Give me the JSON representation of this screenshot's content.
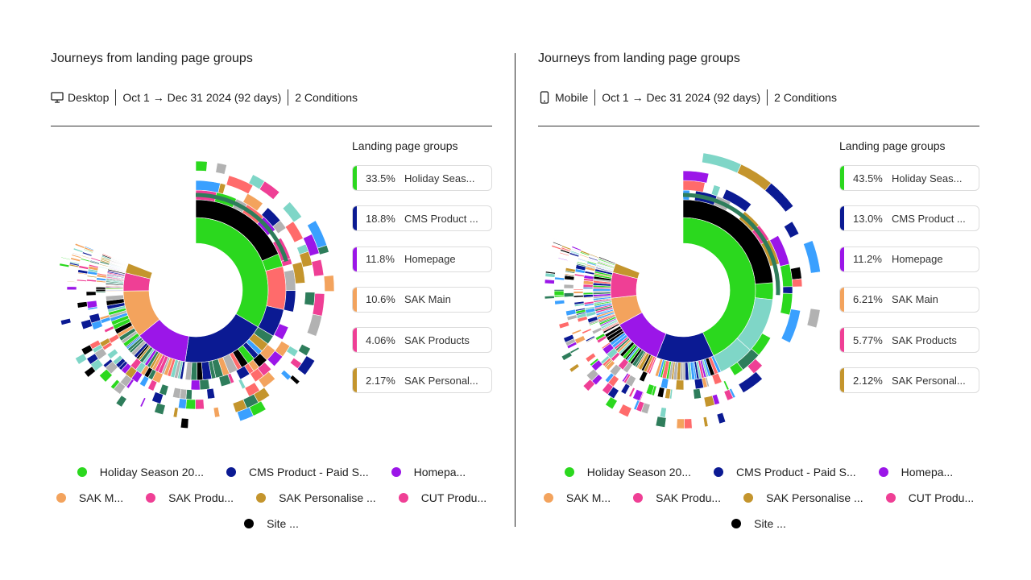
{
  "panels": [
    {
      "title": "Journeys from landing page groups",
      "device": {
        "label": "Desktop",
        "icon": "desktop-icon"
      },
      "date_range": "Oct 1 → Dec 31 2024 (92 days)",
      "conditions": "2 Conditions",
      "landing_title": "Landing page groups",
      "landing": [
        {
          "pct": "33.5%",
          "name": "Holiday Seas...",
          "color": "#2bd81e"
        },
        {
          "pct": "18.8%",
          "name": "CMS Product ...",
          "color": "#0b1a93"
        },
        {
          "pct": "11.8%",
          "name": "Homepage",
          "color": "#9b16e8"
        },
        {
          "pct": "10.6%",
          "name": "SAK Main",
          "color": "#f3a35d"
        },
        {
          "pct": "4.06%",
          "name": "SAK Products",
          "color": "#ef3f95"
        },
        {
          "pct": "2.17%",
          "name": "SAK Personal...",
          "color": "#c4952d"
        }
      ],
      "legend_rows": [
        [
          {
            "name": "Holiday Season 20...",
            "color": "#2bd81e"
          },
          {
            "name": "CMS Product - Paid S...",
            "color": "#0b1a93"
          },
          {
            "name": "Homepa...",
            "color": "#9b16e8"
          }
        ],
        [
          {
            "name": "SAK M...",
            "color": "#f3a35d"
          },
          {
            "name": "SAK Produ...",
            "color": "#ef3f95"
          },
          {
            "name": "SAK Personalise ...",
            "color": "#c4952d"
          },
          {
            "name": "CUT Produ...",
            "color": "#ef3f95"
          }
        ],
        [
          {
            "name": "Site ...",
            "color": "#000000"
          }
        ]
      ],
      "chart_data": {
        "type": "sunburst",
        "inner_ring": [
          {
            "label": "Holiday Season",
            "share": 33.5,
            "color": "#2bd81e"
          },
          {
            "label": "CMS Product",
            "share": 18.8,
            "color": "#0b1a93"
          },
          {
            "label": "Homepage",
            "share": 11.8,
            "color": "#9b16e8"
          },
          {
            "label": "SAK Main",
            "share": 10.6,
            "color": "#f3a35d"
          },
          {
            "label": "SAK Products",
            "share": 4.06,
            "color": "#ef3f95"
          },
          {
            "label": "SAK Personalise",
            "share": 2.17,
            "color": "#c4952d"
          }
        ],
        "next_step": {
          "label": "Site exit",
          "color": "#000000"
        },
        "highlight_color": "#2e7d5b"
      }
    },
    {
      "title": "Journeys from landing page groups",
      "device": {
        "label": "Mobile",
        "icon": "mobile-icon"
      },
      "date_range": "Oct 1 → Dec 31 2024 (92 days)",
      "conditions": "2 Conditions",
      "landing_title": "Landing page groups",
      "landing": [
        {
          "pct": "43.5%",
          "name": "Holiday Seas...",
          "color": "#2bd81e"
        },
        {
          "pct": "13.0%",
          "name": "CMS Product ...",
          "color": "#0b1a93"
        },
        {
          "pct": "11.2%",
          "name": "Homepage",
          "color": "#9b16e8"
        },
        {
          "pct": "6.21%",
          "name": "SAK Main",
          "color": "#f3a35d"
        },
        {
          "pct": "5.77%",
          "name": "SAK Products",
          "color": "#ef3f95"
        },
        {
          "pct": "2.12%",
          "name": "SAK Personal...",
          "color": "#c4952d"
        }
      ],
      "legend_rows": [
        [
          {
            "name": "Holiday Season 20...",
            "color": "#2bd81e"
          },
          {
            "name": "CMS Product - Paid S...",
            "color": "#0b1a93"
          },
          {
            "name": "Homepa...",
            "color": "#9b16e8"
          }
        ],
        [
          {
            "name": "SAK M...",
            "color": "#f3a35d"
          },
          {
            "name": "SAK Produ...",
            "color": "#ef3f95"
          },
          {
            "name": "SAK Personalise ...",
            "color": "#c4952d"
          },
          {
            "name": "CUT Produ...",
            "color": "#ef3f95"
          }
        ],
        [
          {
            "name": "Site ...",
            "color": "#000000"
          }
        ]
      ],
      "chart_data": {
        "type": "sunburst",
        "inner_ring": [
          {
            "label": "Holiday Season",
            "share": 43.5,
            "color": "#2bd81e"
          },
          {
            "label": "CMS Product",
            "share": 13.0,
            "color": "#0b1a93"
          },
          {
            "label": "Homepage",
            "share": 11.2,
            "color": "#9b16e8"
          },
          {
            "label": "SAK Main",
            "share": 6.21,
            "color": "#f3a35d"
          },
          {
            "label": "SAK Products",
            "share": 5.77,
            "color": "#ef3f95"
          },
          {
            "label": "SAK Personalise",
            "share": 2.12,
            "color": "#c4952d"
          }
        ],
        "next_step": {
          "label": "Site exit",
          "color": "#000000"
        },
        "highlight_color": "#2e7d5b"
      }
    }
  ]
}
